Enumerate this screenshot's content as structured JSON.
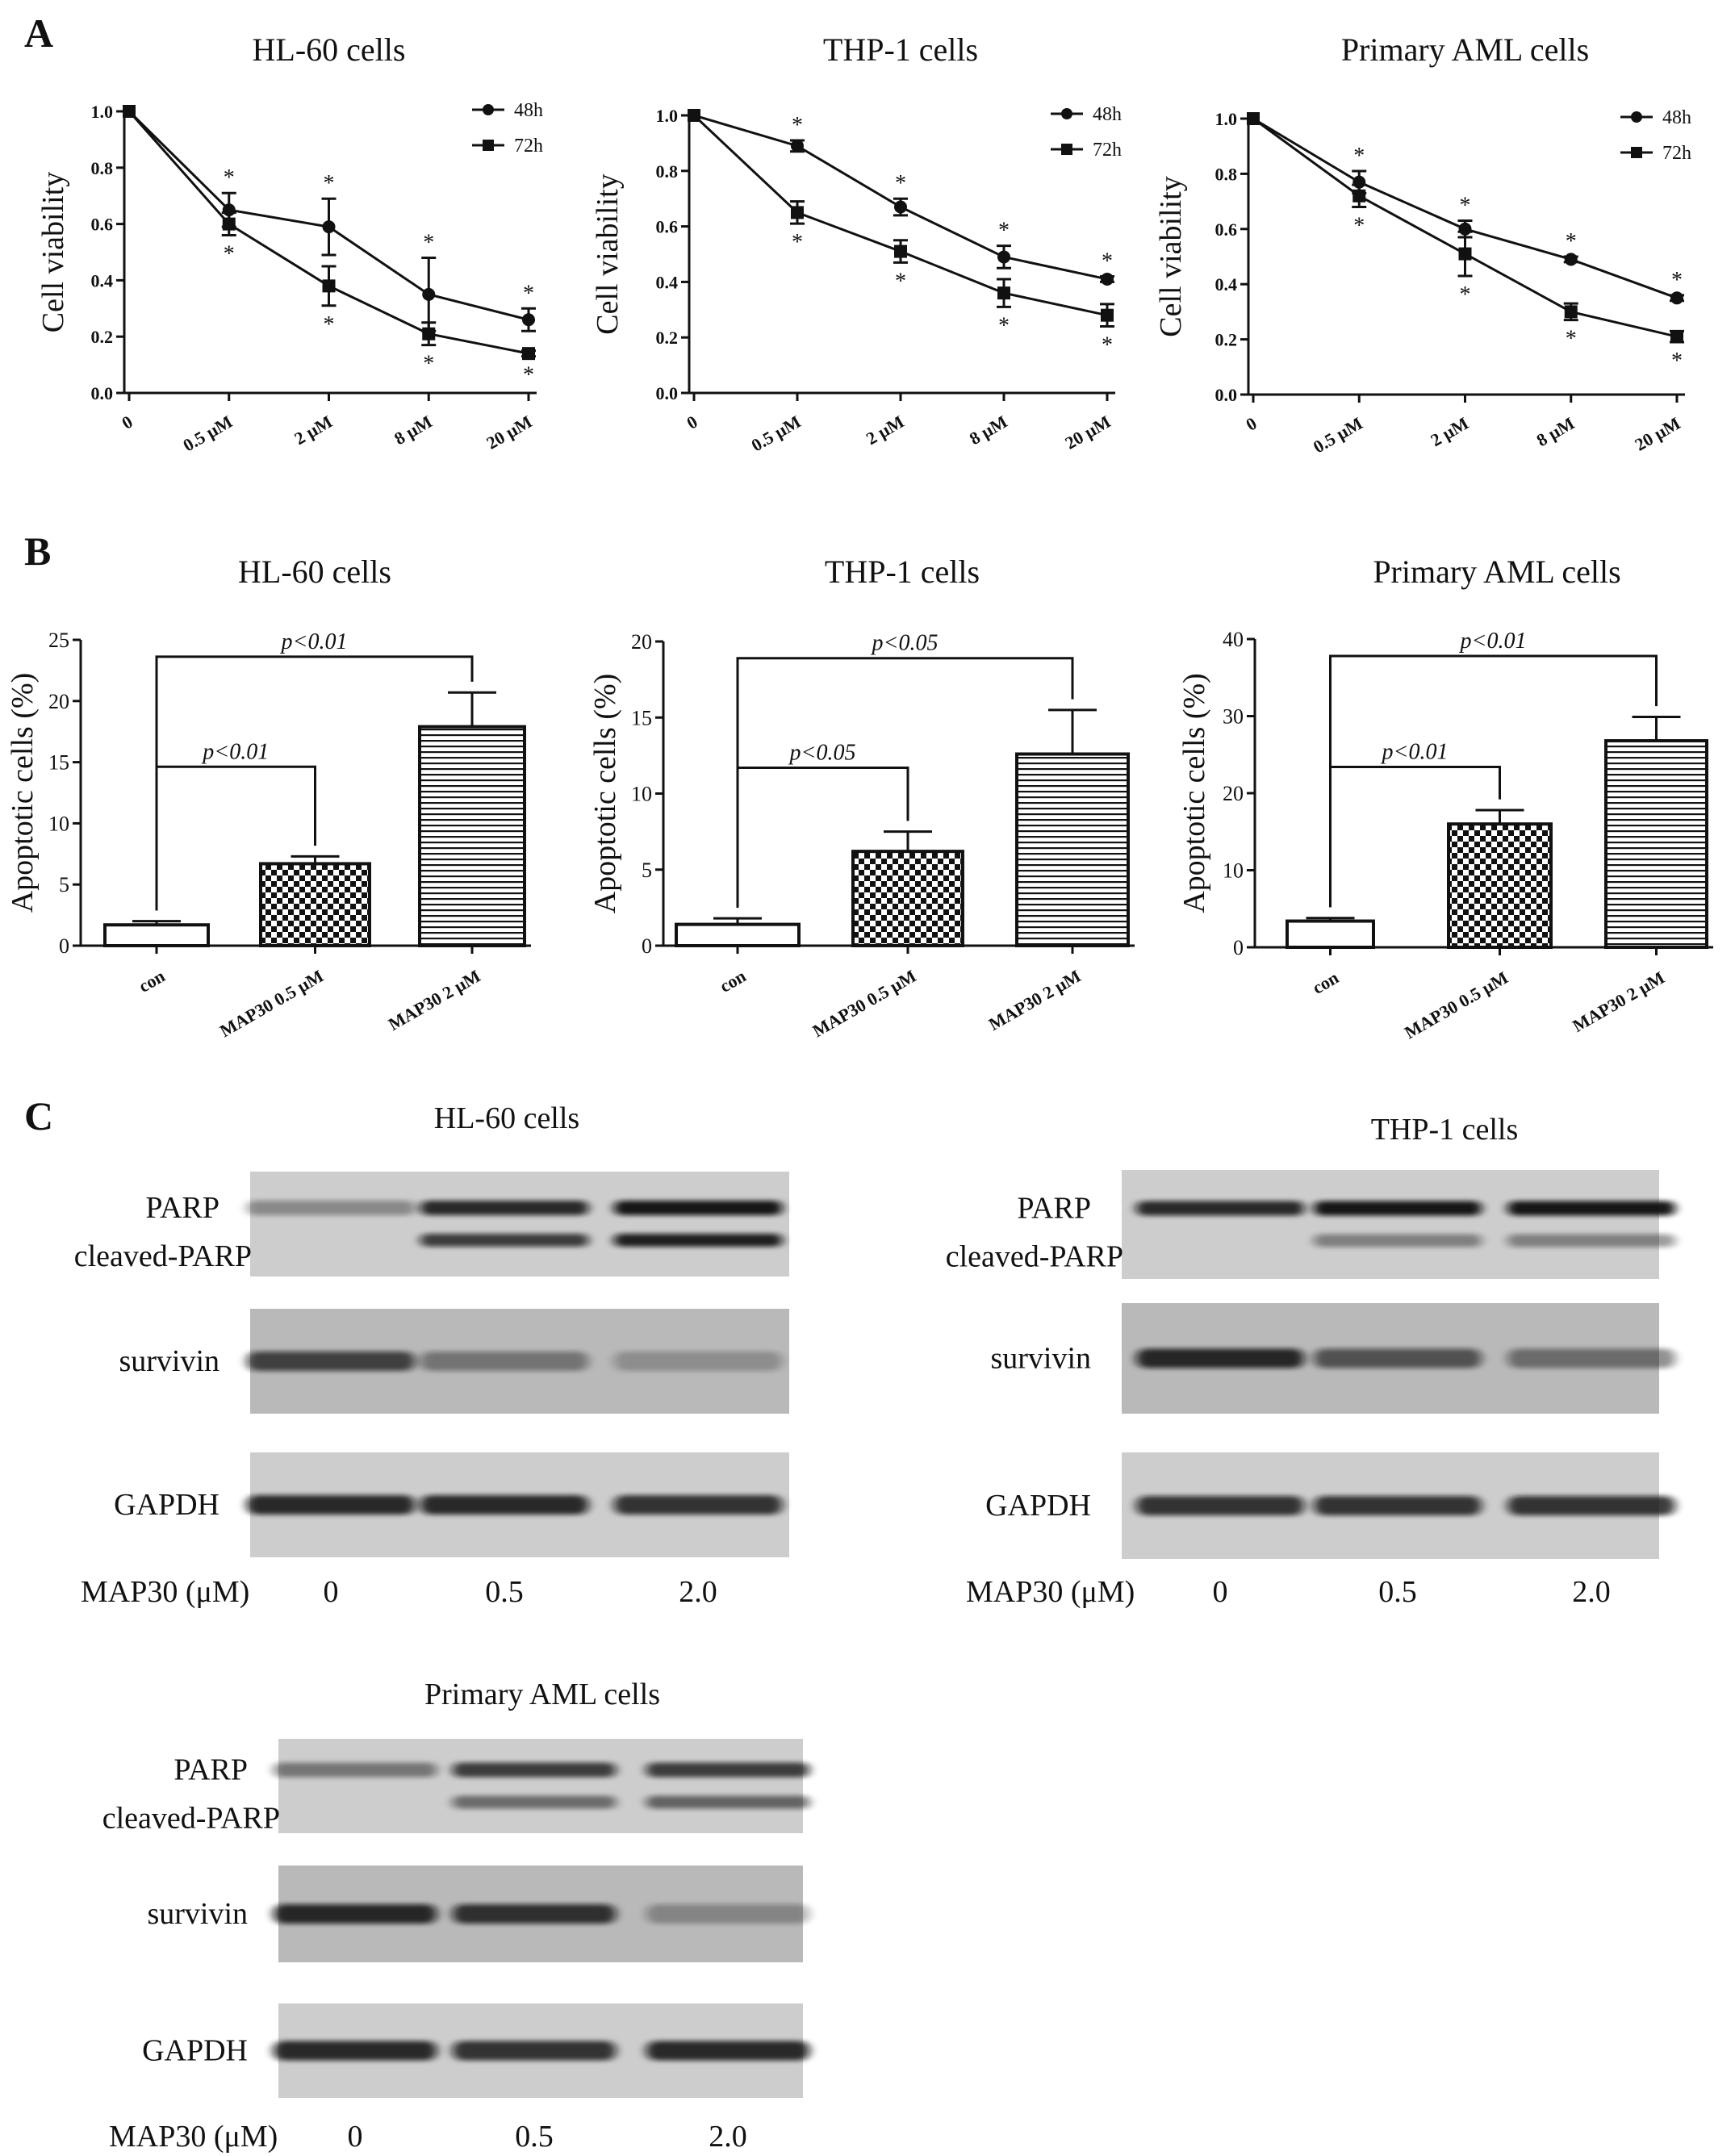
{
  "panel_letters": [
    "A",
    "B",
    "C"
  ],
  "chart_data": [
    {
      "type": "line",
      "panel": "A",
      "title": "HL-60 cells",
      "ylabel": "Cell viability",
      "categories": [
        "0",
        "0.5 μM",
        "2 μM",
        "8 μM",
        "20 μM"
      ],
      "ylim": [
        0,
        1.0
      ],
      "yticks": [
        "0.0",
        "0.2",
        "0.4",
        "0.6",
        "0.8",
        "1.0"
      ],
      "legend_position": "top-right",
      "series": [
        {
          "name": "48h",
          "marker": "circle",
          "values": [
            1.0,
            0.65,
            0.59,
            0.35,
            0.26
          ],
          "errors": [
            0,
            0.06,
            0.1,
            0.13,
            0.04
          ]
        },
        {
          "name": "72h",
          "marker": "square",
          "values": [
            1.0,
            0.6,
            0.38,
            0.21,
            0.14
          ],
          "errors": [
            0,
            0.04,
            0.07,
            0.04,
            0.01
          ]
        }
      ],
      "annotations": {
        "48h": [
          "",
          "*",
          "*",
          "*",
          "*"
        ],
        "72h": [
          "",
          "*",
          "*",
          "*",
          "*"
        ]
      }
    },
    {
      "type": "line",
      "panel": "A",
      "title": "THP-1 cells",
      "ylabel": "Cell viability",
      "categories": [
        "0",
        "0.5 μM",
        "2 μM",
        "8 μM",
        "20 μM"
      ],
      "ylim": [
        0,
        1.0
      ],
      "yticks": [
        "0.0",
        "0.2",
        "0.4",
        "0.6",
        "0.8",
        "1.0"
      ],
      "legend_position": "top-right",
      "series": [
        {
          "name": "48h",
          "marker": "circle",
          "values": [
            1.0,
            0.89,
            0.67,
            0.49,
            0.41
          ],
          "errors": [
            0,
            0.02,
            0.03,
            0.04,
            0.01
          ]
        },
        {
          "name": "72h",
          "marker": "square",
          "values": [
            1.0,
            0.65,
            0.51,
            0.36,
            0.28
          ],
          "errors": [
            0,
            0.04,
            0.04,
            0.05,
            0.04
          ]
        }
      ],
      "annotations": {
        "48h": [
          "",
          "*",
          "*",
          "*",
          "*"
        ],
        "72h": [
          "",
          "*",
          "*",
          "*",
          "*"
        ]
      }
    },
    {
      "type": "line",
      "panel": "A",
      "title": "Primary AML cells",
      "ylabel": "Cell viability",
      "categories": [
        "0",
        "0.5 μM",
        "2 μM",
        "8 μM",
        "20 μM"
      ],
      "ylim": [
        0,
        1.0
      ],
      "yticks": [
        "0.0",
        "0.2",
        "0.4",
        "0.6",
        "0.8",
        "1.0"
      ],
      "legend_position": "top-right",
      "series": [
        {
          "name": "48h",
          "marker": "circle",
          "values": [
            1.0,
            0.77,
            0.6,
            0.49,
            0.35
          ],
          "errors": [
            0,
            0.04,
            0.03,
            0.01,
            0.01
          ]
        },
        {
          "name": "72h",
          "marker": "square",
          "values": [
            1.0,
            0.72,
            0.51,
            0.3,
            0.21
          ],
          "errors": [
            0,
            0.04,
            0.08,
            0.03,
            0.02
          ]
        }
      ],
      "annotations": {
        "48h": [
          "",
          "*",
          "*",
          "*",
          "*"
        ],
        "72h": [
          "",
          "*",
          "*",
          "*",
          "*"
        ]
      }
    },
    {
      "type": "bar",
      "panel": "B",
      "title": "HL-60 cells",
      "ylabel": "Apoptotic cells (%)",
      "categories": [
        "con",
        "MAP30 0.5 μM",
        "MAP30 2 μM"
      ],
      "values": [
        1.7,
        6.7,
        17.9
      ],
      "errors": [
        0.3,
        0.6,
        2.8
      ],
      "patterns": [
        "none",
        "checker",
        "hlines"
      ],
      "ylim": [
        0,
        25
      ],
      "yticks": [
        "0",
        "5",
        "10",
        "15",
        "20",
        "25"
      ],
      "comparisons": [
        {
          "from": 0,
          "to": 1,
          "label": "p<0.01"
        },
        {
          "from": 0,
          "to": 2,
          "label": "p<0.01"
        }
      ]
    },
    {
      "type": "bar",
      "panel": "B",
      "title": "THP-1 cells",
      "ylabel": "Apoptotic cells (%)",
      "categories": [
        "con",
        "MAP30 0.5 μM",
        "MAP30 2 μM"
      ],
      "values": [
        1.4,
        6.2,
        12.6
      ],
      "errors": [
        0.4,
        1.3,
        2.9
      ],
      "patterns": [
        "none",
        "checker",
        "hlines"
      ],
      "ylim": [
        0,
        20
      ],
      "yticks": [
        "0",
        "5",
        "10",
        "15",
        "20"
      ],
      "comparisons": [
        {
          "from": 0,
          "to": 1,
          "label": "p<0.05"
        },
        {
          "from": 0,
          "to": 2,
          "label": "p<0.05"
        }
      ]
    },
    {
      "type": "bar",
      "panel": "B",
      "title": "Primary AML cells",
      "ylabel": "Apoptotic cells (%)",
      "categories": [
        "con",
        "MAP30 0.5 μM",
        "MAP30 2 μM"
      ],
      "values": [
        3.4,
        16.0,
        26.8
      ],
      "errors": [
        0.4,
        1.8,
        3.1
      ],
      "patterns": [
        "none",
        "checker",
        "hlines"
      ],
      "ylim": [
        0,
        40
      ],
      "yticks": [
        "0",
        "10",
        "20",
        "30",
        "40"
      ],
      "comparisons": [
        {
          "from": 0,
          "to": 1,
          "label": "p<0.01"
        },
        {
          "from": 0,
          "to": 2,
          "label": "p<0.01"
        }
      ]
    }
  ],
  "western_blots": [
    {
      "title": "HL-60 cells",
      "dose_label": "MAP30 (μM)",
      "doses": [
        "0",
        "0.5",
        "2.0"
      ],
      "rows": [
        {
          "labels": [
            "PARP",
            "cleaved-PARP"
          ],
          "band_intensity": [
            [
              0.35,
              0.85,
              0.95
            ],
            [
              0.0,
              0.75,
              0.9
            ]
          ]
        },
        {
          "labels": [
            "survivin"
          ],
          "band_intensity": [
            [
              0.7,
              0.4,
              0.25
            ]
          ]
        },
        {
          "labels": [
            "GAPDH"
          ],
          "band_intensity": [
            [
              0.85,
              0.85,
              0.8
            ]
          ]
        }
      ]
    },
    {
      "title": "THP-1 cells",
      "dose_label": "MAP30 (μM)",
      "doses": [
        "0",
        "0.5",
        "2.0"
      ],
      "rows": [
        {
          "labels": [
            "PARP",
            "cleaved-PARP"
          ],
          "band_intensity": [
            [
              0.85,
              0.95,
              0.95
            ],
            [
              0.0,
              0.4,
              0.4
            ]
          ]
        },
        {
          "labels": [
            "survivin"
          ],
          "band_intensity": [
            [
              0.85,
              0.6,
              0.45
            ]
          ]
        },
        {
          "labels": [
            "GAPDH"
          ],
          "band_intensity": [
            [
              0.8,
              0.8,
              0.8
            ]
          ]
        }
      ]
    },
    {
      "title": "Primary AML cells",
      "dose_label": "MAP30 (μM)",
      "doses": [
        "0",
        "0.5",
        "2.0"
      ],
      "rows": [
        {
          "labels": [
            "PARP",
            "cleaved-PARP"
          ],
          "band_intensity": [
            [
              0.45,
              0.75,
              0.75
            ],
            [
              0.0,
              0.5,
              0.55
            ]
          ]
        },
        {
          "labels": [
            "survivin"
          ],
          "band_intensity": [
            [
              0.85,
              0.8,
              0.3
            ]
          ]
        },
        {
          "labels": [
            "GAPDH"
          ],
          "band_intensity": [
            [
              0.85,
              0.8,
              0.85
            ]
          ]
        }
      ]
    }
  ]
}
